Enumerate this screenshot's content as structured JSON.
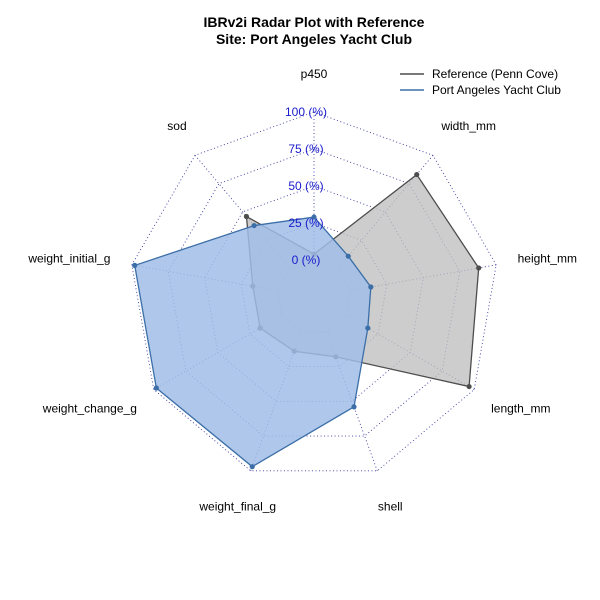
{
  "chart_data": {
    "type": "radar",
    "title": "IBRv2i Radar Plot with Reference",
    "subtitle": "Site: Port Angeles Yacht Club",
    "axes": [
      "p450",
      "width_mm",
      "height_mm",
      "length_mm",
      "shell",
      "weight_final_g",
      "weight_change_g",
      "weight_initial_g",
      "sod"
    ],
    "ticks": [
      {
        "value": 0,
        "label": "0 (%)"
      },
      {
        "value": 25,
        "label": "25 (%)"
      },
      {
        "value": 50,
        "label": "50 (%)"
      },
      {
        "value": 75,
        "label": "75 (%)"
      },
      {
        "value": 100,
        "label": "100 (%)"
      }
    ],
    "rlim": [
      0,
      100
    ],
    "grid": true,
    "legend_position": "top-right",
    "series": [
      {
        "name": "Reference (Penn Cove)",
        "color": "#4d4d4d",
        "fill": "#bfbfbf",
        "values": [
          4,
          83,
          88,
          96,
          18,
          14,
          17,
          17,
          46
        ]
      },
      {
        "name": "Port Angeles Yacht Club",
        "color": "#3c6fa8",
        "fill": "#a0bde6",
        "values": [
          29,
          11,
          14,
          17,
          54,
          97,
          98,
          98,
          38
        ]
      }
    ]
  },
  "colors": {
    "tick_label": "#1a1acc",
    "grid": "#3a3aa0"
  }
}
